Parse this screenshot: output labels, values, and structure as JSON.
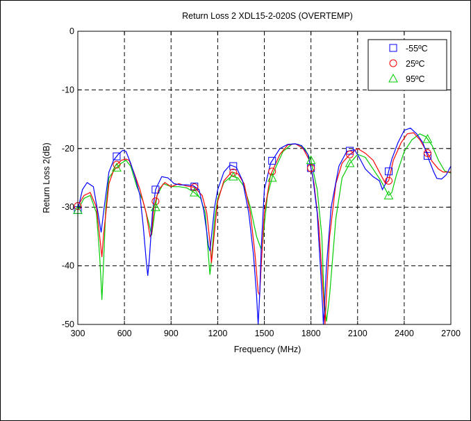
{
  "chart_data": {
    "type": "line",
    "title": "Return Loss 2 XDL15-2-020S (OVERTEMP)",
    "xlabel": "Frequency (MHz)",
    "ylabel": "Return Loss 2(dB)",
    "xlim": [
      300,
      2700
    ],
    "ylim": [
      -50,
      0
    ],
    "xticks": [
      300,
      600,
      900,
      1200,
      1500,
      1800,
      2100,
      2400,
      2700
    ],
    "yticks": [
      0,
      -10,
      -20,
      -30,
      -40,
      -50
    ],
    "grid": true,
    "legend": "top-right",
    "series": [
      {
        "name": "-55ºC",
        "color": "#0000ff",
        "marker": "square",
        "markers_x": [
          300,
          550,
          800,
          1050,
          1300,
          1550,
          1800,
          2050,
          2300,
          2550
        ],
        "x": [
          300,
          330,
          360,
          400,
          430,
          450,
          470,
          500,
          530,
          560,
          590,
          610,
          640,
          670,
          700,
          720,
          740,
          750,
          760,
          780,
          800,
          840,
          880,
          920,
          960,
          1000,
          1040,
          1080,
          1110,
          1130,
          1140,
          1150,
          1160,
          1180,
          1200,
          1240,
          1280,
          1320,
          1360,
          1400,
          1430,
          1450,
          1460,
          1470,
          1480,
          1500,
          1540,
          1600,
          1650,
          1700,
          1740,
          1780,
          1810,
          1840,
          1860,
          1875,
          1880,
          1885,
          1900,
          1930,
          1980,
          2030,
          2080,
          2110,
          2150,
          2200,
          2240,
          2260,
          2280,
          2320,
          2360,
          2400,
          2440,
          2480,
          2520,
          2560,
          2590,
          2610,
          2640,
          2670,
          2700
        ],
        "y": [
          -30.5,
          -27,
          -25.8,
          -26.5,
          -31,
          -34.3,
          -30,
          -24,
          -22,
          -21,
          -20.3,
          -20.5,
          -22.5,
          -25,
          -28,
          -33,
          -39,
          -41.7,
          -39,
          -31,
          -27,
          -24.8,
          -25,
          -26,
          -26.2,
          -26.2,
          -26.3,
          -27,
          -30.5,
          -34.3,
          -36.5,
          -37.5,
          -35,
          -30,
          -27,
          -24,
          -22.8,
          -23.2,
          -25.5,
          -31,
          -38,
          -45,
          -50,
          -45,
          -37,
          -27,
          -22.5,
          -20,
          -19.3,
          -19.2,
          -19.5,
          -21,
          -24.5,
          -31,
          -40,
          -47,
          -50,
          -48,
          -40,
          -30,
          -23,
          -20.5,
          -20.2,
          -21.5,
          -23.5,
          -24.8,
          -25.5,
          -27,
          -26,
          -21.8,
          -19,
          -16.9,
          -16.5,
          -17.5,
          -19,
          -22,
          -24,
          -25.1,
          -25.2,
          -24.5,
          -23
        ]
      },
      {
        "name": "25ºC",
        "color": "#ff0000",
        "marker": "circle",
        "markers_x": [
          300,
          550,
          800,
          1050,
          1300,
          1550,
          1800,
          2050,
          2300,
          2550
        ],
        "x": [
          300,
          340,
          380,
          420,
          445,
          455,
          465,
          500,
          540,
          580,
          610,
          630,
          660,
          700,
          740,
          765,
          775,
          790,
          820,
          860,
          900,
          950,
          1000,
          1050,
          1100,
          1130,
          1150,
          1160,
          1180,
          1200,
          1240,
          1290,
          1330,
          1370,
          1410,
          1440,
          1460,
          1470,
          1480,
          1500,
          1540,
          1600,
          1650,
          1700,
          1750,
          1790,
          1820,
          1850,
          1880,
          1890,
          1900,
          1920,
          1960,
          2000,
          2050,
          2100,
          2150,
          2200,
          2250,
          2280,
          2300,
          2330,
          2380,
          2420,
          2460,
          2500,
          2540,
          2580,
          2620,
          2650,
          2700
        ],
        "y": [
          -29.8,
          -28,
          -27.5,
          -30,
          -36,
          -38.5,
          -35,
          -26,
          -23,
          -22,
          -21.8,
          -22,
          -24,
          -27,
          -31,
          -35,
          -34.5,
          -30,
          -27,
          -25.8,
          -26.5,
          -26,
          -26.4,
          -26.6,
          -28,
          -31,
          -36,
          -39.5,
          -34,
          -29,
          -25.5,
          -24,
          -24.3,
          -26,
          -31,
          -38,
          -44.5,
          -45,
          -40,
          -31,
          -24.5,
          -21,
          -19.4,
          -19.2,
          -20,
          -22,
          -26,
          -33,
          -45,
          -50,
          -45,
          -35,
          -26,
          -22.5,
          -21,
          -20,
          -20.8,
          -22,
          -24.5,
          -26,
          -25.5,
          -22,
          -19,
          -17.5,
          -17.3,
          -18.5,
          -20.3,
          -22.2,
          -23.5,
          -24,
          -24
        ]
      },
      {
        "name": "95ºC",
        "color": "#00cc00",
        "marker": "triangle",
        "markers_x": [
          300,
          550,
          800,
          1050,
          1300,
          1550,
          1800,
          2050,
          2300,
          2550
        ],
        "x": [
          300,
          340,
          380,
          420,
          440,
          450,
          455,
          465,
          480,
          500,
          540,
          580,
          610,
          640,
          680,
          720,
          760,
          775,
          790,
          810,
          850,
          900,
          950,
          1000,
          1050,
          1090,
          1120,
          1140,
          1150,
          1160,
          1180,
          1200,
          1240,
          1290,
          1330,
          1370,
          1410,
          1450,
          1480,
          1490,
          1500,
          1520,
          1560,
          1620,
          1680,
          1720,
          1760,
          1800,
          1840,
          1870,
          1885,
          1900,
          1920,
          1960,
          2000,
          2050,
          2100,
          2150,
          2200,
          2250,
          2290,
          2300,
          2320,
          2350,
          2400,
          2450,
          2500,
          2540,
          2580,
          2620,
          2660,
          2700
        ],
        "y": [
          -30.5,
          -28.5,
          -28,
          -31,
          -38,
          -43,
          -45.8,
          -40,
          -30,
          -25,
          -23.5,
          -22.5,
          -22,
          -23,
          -26.5,
          -29,
          -33,
          -34.8,
          -32,
          -28,
          -26,
          -26.5,
          -26.5,
          -26.7,
          -27.5,
          -28.5,
          -31,
          -38,
          -41.5,
          -39,
          -32,
          -28.5,
          -25.8,
          -24.7,
          -25,
          -26.5,
          -30,
          -35,
          -37.2,
          -36,
          -33,
          -28,
          -24,
          -20.5,
          -19.2,
          -19.3,
          -20,
          -22,
          -27,
          -35,
          -46,
          -49.5,
          -45,
          -32,
          -25,
          -22.5,
          -21,
          -21.5,
          -23.5,
          -25.5,
          -27.5,
          -28,
          -27.5,
          -24.5,
          -20.5,
          -18.5,
          -17.5,
          -18,
          -19.5,
          -22,
          -23.8,
          -24.2
        ]
      }
    ]
  }
}
